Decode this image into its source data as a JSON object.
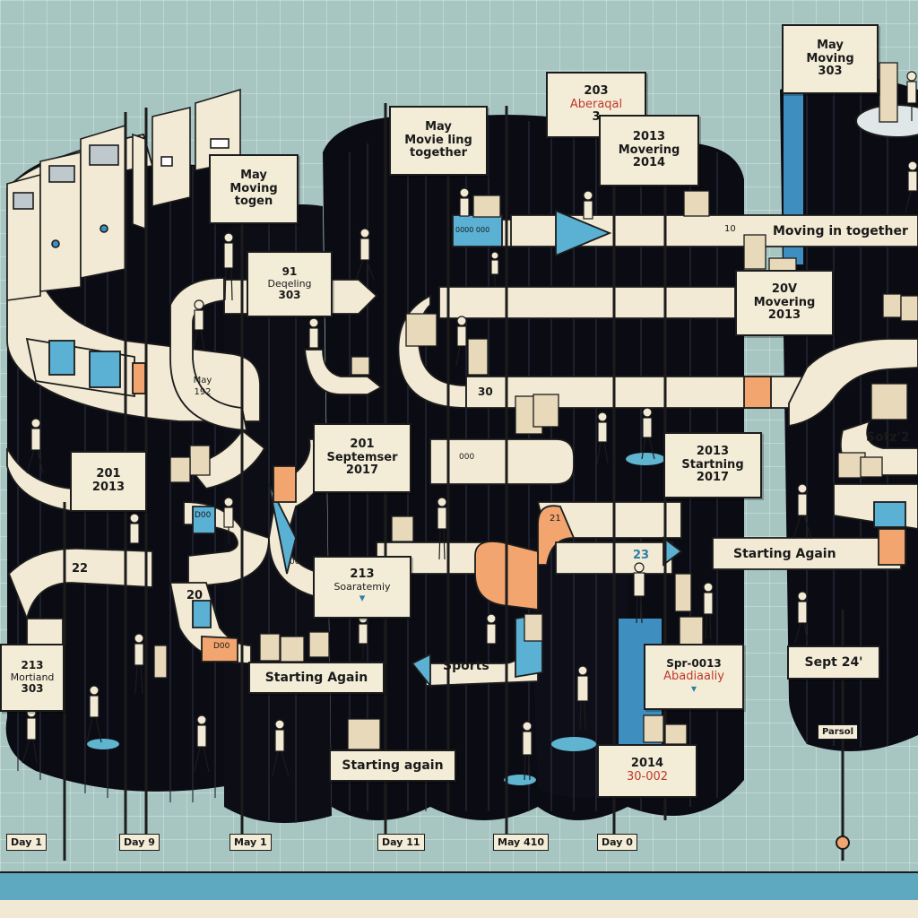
{
  "cards": [
    {
      "id": "c1",
      "lines": [
        "May",
        "Moving",
        "303"
      ]
    },
    {
      "id": "c2",
      "lines": [
        "203",
        "Aberaqal",
        "3"
      ]
    },
    {
      "id": "c3",
      "lines": [
        "May",
        "Movie ling",
        "together"
      ]
    },
    {
      "id": "c4",
      "lines": [
        "2013",
        "Movering",
        "2014"
      ]
    },
    {
      "id": "c5",
      "lines": [
        "May",
        "Moving",
        "togen"
      ]
    },
    {
      "id": "c6",
      "lines": [
        "91",
        "Deqeling",
        "303"
      ]
    },
    {
      "id": "c7",
      "lines": [
        "20V",
        "Movering",
        "2013"
      ]
    },
    {
      "id": "c8",
      "lines": [
        "201",
        "2013"
      ]
    },
    {
      "id": "c9",
      "lines": [
        "201",
        "Septemser",
        "2017"
      ]
    },
    {
      "id": "c10",
      "lines": [
        "2013",
        "Startning",
        "2017"
      ]
    },
    {
      "id": "c11",
      "lines": [
        "213",
        "Soaratemiy"
      ]
    },
    {
      "id": "c12",
      "lines": [
        "213",
        "Mortiand",
        "303"
      ]
    },
    {
      "id": "c13",
      "lines": [
        "Sept 24'"
      ]
    },
    {
      "id": "c14",
      "lines": [
        "Spr-0013",
        "Abadiaaliy"
      ]
    },
    {
      "id": "c15",
      "lines": [
        "Starting Again"
      ]
    },
    {
      "id": "c16",
      "lines": [
        "Starting again"
      ]
    },
    {
      "id": "c17",
      "lines": [
        "2014",
        "30-002"
      ]
    }
  ],
  "ribbon_labels": {
    "moving_in_together": "Moving in together",
    "starting_again": "Starting Again",
    "sotz": "Sotz'2",
    "sports": "Sports",
    "may_192": "May 192",
    "r30": "30",
    "r20": "20",
    "r22": "22",
    "r23": "23",
    "r21": "21",
    "r10": "10",
    "r_small_1": "D00",
    "r_small_2": "D00",
    "r_small_3": "0000 000",
    "r_small_4": "000",
    "r_small_5": "00"
  },
  "panel_label": "Parsol",
  "bottom_tags": [
    "Day  1",
    "Day  9",
    "May  1",
    "Day  11",
    "May  410",
    "Day  0"
  ]
}
